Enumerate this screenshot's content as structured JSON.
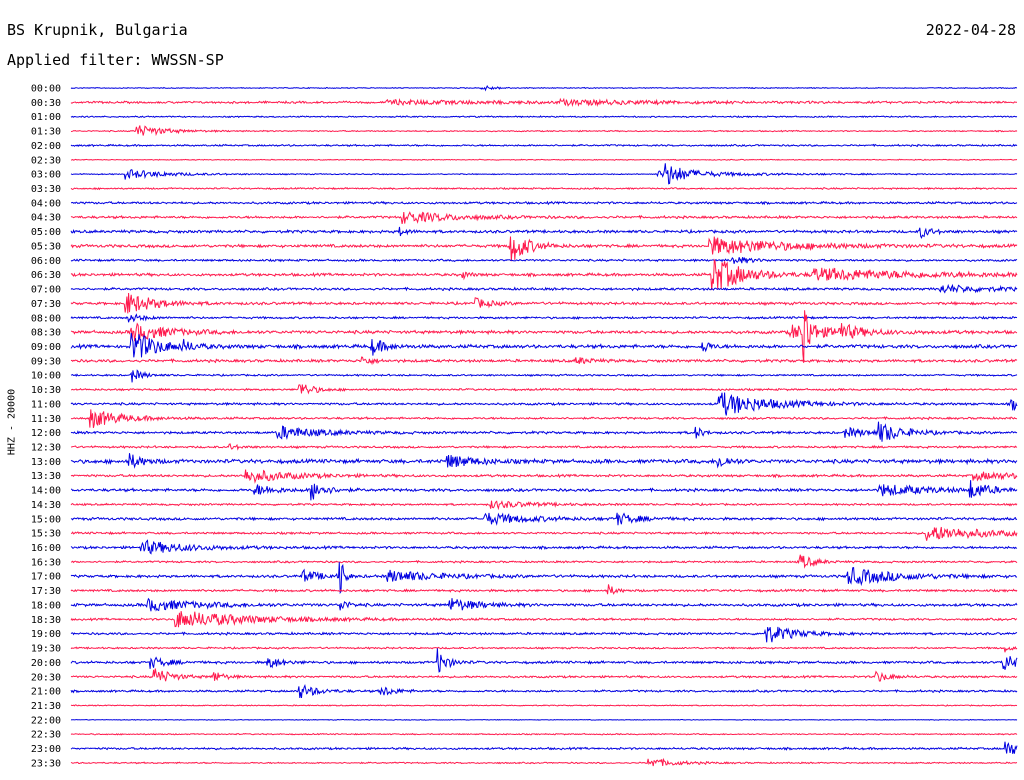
{
  "header": {
    "station": "BS Krupnik, Bulgaria",
    "date": "2022-04-28",
    "filter": "Applied filter: WWSSN-SP",
    "side_label": "HHZ - 20000"
  },
  "colors": {
    "even_rows": "#0000e0",
    "odd_rows": "#ff1a4d"
  },
  "chart_data": {
    "type": "helicorder",
    "title": "BS Krupnik, Bulgaria",
    "date": "2022-04-28",
    "channel_label": "HHZ - 20000",
    "filter": "WWSSN-SP",
    "row_minutes": 30,
    "rows": [
      "00:00",
      "00:30",
      "01:00",
      "01:30",
      "02:00",
      "02:30",
      "03:00",
      "03:30",
      "04:00",
      "04:30",
      "05:00",
      "05:30",
      "06:00",
      "06:30",
      "07:00",
      "07:30",
      "08:00",
      "08:30",
      "09:00",
      "09:30",
      "10:00",
      "10:30",
      "11:00",
      "11:30",
      "12:00",
      "12:30",
      "13:00",
      "13:30",
      "14:00",
      "14:30",
      "15:00",
      "15:30",
      "16:00",
      "16:30",
      "17:00",
      "17:30",
      "18:00",
      "18:30",
      "19:00",
      "19:30",
      "20:00",
      "20:30",
      "21:00",
      "21:30",
      "22:00",
      "22:30",
      "23:00",
      "23:30"
    ],
    "noise": [
      0.5,
      1.2,
      0.8,
      0.7,
      1.0,
      0.5,
      0.6,
      0.9,
      1.3,
      1.4,
      1.6,
      1.7,
      1.2,
      1.6,
      1.4,
      1.5,
      1.2,
      1.8,
      2.0,
      1.6,
      1.0,
      1.1,
      1.3,
      1.2,
      1.4,
      1.2,
      2.2,
      1.4,
      1.6,
      1.1,
      1.5,
      1.2,
      1.4,
      1.1,
      1.5,
      1.3,
      1.6,
      1.2,
      1.3,
      1.0,
      1.4,
      1.2,
      1.2,
      0.6,
      0.4,
      0.7,
      1.2,
      0.8
    ],
    "events": [
      {
        "row": 0,
        "min": 13.0,
        "amp": 3,
        "dur": 0.4
      },
      {
        "row": 1,
        "min": 10.0,
        "amp": 2,
        "dur": 4.0
      },
      {
        "row": 1,
        "min": 15.5,
        "amp": 2,
        "dur": 3.0
      },
      {
        "row": 3,
        "min": 2.0,
        "amp": 7,
        "dur": 0.8
      },
      {
        "row": 6,
        "min": 1.7,
        "amp": 5,
        "dur": 1.2
      },
      {
        "row": 6,
        "min": 18.6,
        "amp": 3,
        "dur": 2.5
      },
      {
        "row": 6,
        "min": 18.8,
        "amp": 11,
        "dur": 0.5
      },
      {
        "row": 9,
        "min": 10.5,
        "amp": 6,
        "dur": 1.5
      },
      {
        "row": 10,
        "min": 10.4,
        "amp": 5,
        "dur": 0.2
      },
      {
        "row": 10,
        "min": 26.9,
        "amp": 7,
        "dur": 0.3
      },
      {
        "row": 11,
        "min": 13.9,
        "amp": 19,
        "dur": 0.5
      },
      {
        "row": 11,
        "min": 20.2,
        "amp": 9,
        "dur": 2.2
      },
      {
        "row": 12,
        "min": 20.9,
        "amp": 5,
        "dur": 0.5
      },
      {
        "row": 13,
        "min": 12.4,
        "amp": 4,
        "dur": 0.2
      },
      {
        "row": 13,
        "min": 20.3,
        "amp": 20,
        "dur": 0.9
      },
      {
        "row": 13,
        "min": 23.5,
        "amp": 6,
        "dur": 3.5
      },
      {
        "row": 14,
        "min": 27.5,
        "amp": 4,
        "dur": 1.5
      },
      {
        "row": 15,
        "min": 1.7,
        "amp": 12,
        "dur": 0.8
      },
      {
        "row": 15,
        "min": 12.8,
        "amp": 5,
        "dur": 0.5
      },
      {
        "row": 16,
        "min": 1.8,
        "amp": 5,
        "dur": 0.4
      },
      {
        "row": 17,
        "min": 1.9,
        "amp": 10,
        "dur": 1.0
      },
      {
        "row": 17,
        "min": 22.8,
        "amp": 7,
        "dur": 1.5
      },
      {
        "row": 17,
        "min": 23.2,
        "amp": 45,
        "dur": 0.15
      },
      {
        "row": 17,
        "min": 24.3,
        "amp": 8,
        "dur": 0.5
      },
      {
        "row": 18,
        "min": 1.9,
        "amp": 16,
        "dur": 0.8
      },
      {
        "row": 18,
        "min": 3.5,
        "amp": 5,
        "dur": 0.3
      },
      {
        "row": 18,
        "min": 9.5,
        "amp": 9,
        "dur": 0.4
      },
      {
        "row": 18,
        "min": 20.0,
        "amp": 9,
        "dur": 0.2
      },
      {
        "row": 19,
        "min": 9.2,
        "amp": 5,
        "dur": 0.3
      },
      {
        "row": 19,
        "min": 16.0,
        "amp": 4,
        "dur": 0.4
      },
      {
        "row": 20,
        "min": 1.9,
        "amp": 8,
        "dur": 0.3
      },
      {
        "row": 21,
        "min": 7.2,
        "amp": 9,
        "dur": 0.4
      },
      {
        "row": 22,
        "min": 20.5,
        "amp": 13,
        "dur": 1.4
      },
      {
        "row": 22,
        "min": 29.8,
        "amp": 6,
        "dur": 0.5
      },
      {
        "row": 23,
        "min": 0.6,
        "amp": 10,
        "dur": 0.9
      },
      {
        "row": 24,
        "min": 6.5,
        "amp": 7,
        "dur": 1.2
      },
      {
        "row": 24,
        "min": 19.8,
        "amp": 7,
        "dur": 0.2
      },
      {
        "row": 24,
        "min": 24.5,
        "amp": 5,
        "dur": 0.8
      },
      {
        "row": 24,
        "min": 25.6,
        "amp": 10,
        "dur": 0.7
      },
      {
        "row": 25,
        "min": 5.0,
        "amp": 3,
        "dur": 0.3
      },
      {
        "row": 26,
        "min": 1.8,
        "amp": 8,
        "dur": 0.4
      },
      {
        "row": 26,
        "min": 11.9,
        "amp": 7,
        "dur": 0.8
      },
      {
        "row": 26,
        "min": 20.5,
        "amp": 8,
        "dur": 0.3
      },
      {
        "row": 27,
        "min": 5.5,
        "amp": 7,
        "dur": 1.3
      },
      {
        "row": 27,
        "min": 28.6,
        "amp": 4,
        "dur": 1.5
      },
      {
        "row": 28,
        "min": 5.8,
        "amp": 6,
        "dur": 0.6
      },
      {
        "row": 28,
        "min": 7.6,
        "amp": 11,
        "dur": 0.4
      },
      {
        "row": 28,
        "min": 25.6,
        "amp": 6,
        "dur": 1.5
      },
      {
        "row": 28,
        "min": 28.5,
        "amp": 9,
        "dur": 0.5
      },
      {
        "row": 29,
        "min": 13.3,
        "amp": 4,
        "dur": 1.2
      },
      {
        "row": 30,
        "min": 13.1,
        "amp": 6,
        "dur": 1.3
      },
      {
        "row": 30,
        "min": 17.3,
        "amp": 6,
        "dur": 0.6
      },
      {
        "row": 31,
        "min": 27.1,
        "amp": 8,
        "dur": 1.8
      },
      {
        "row": 32,
        "min": 2.2,
        "amp": 7,
        "dur": 1.4
      },
      {
        "row": 33,
        "min": 23.1,
        "amp": 8,
        "dur": 0.4
      },
      {
        "row": 34,
        "min": 7.3,
        "amp": 6,
        "dur": 0.6
      },
      {
        "row": 34,
        "min": 8.5,
        "amp": 36,
        "dur": 0.1
      },
      {
        "row": 34,
        "min": 10.0,
        "amp": 6,
        "dur": 1.5
      },
      {
        "row": 34,
        "min": 24.6,
        "amp": 9,
        "dur": 1.5
      },
      {
        "row": 35,
        "min": 17.0,
        "amp": 7,
        "dur": 0.2
      },
      {
        "row": 36,
        "min": 2.4,
        "amp": 6,
        "dur": 1.5
      },
      {
        "row": 36,
        "min": 8.5,
        "amp": 8,
        "dur": 0.2
      },
      {
        "row": 36,
        "min": 12.0,
        "amp": 7,
        "dur": 0.8
      },
      {
        "row": 37,
        "min": 3.3,
        "amp": 9,
        "dur": 2.2
      },
      {
        "row": 38,
        "min": 22.0,
        "amp": 10,
        "dur": 0.8
      },
      {
        "row": 39,
        "min": 29.6,
        "amp": 4,
        "dur": 0.2
      },
      {
        "row": 40,
        "min": 2.5,
        "amp": 6,
        "dur": 0.5
      },
      {
        "row": 40,
        "min": 6.2,
        "amp": 7,
        "dur": 0.4
      },
      {
        "row": 40,
        "min": 11.6,
        "amp": 14,
        "dur": 0.3
      },
      {
        "row": 40,
        "min": 29.5,
        "amp": 10,
        "dur": 0.5
      },
      {
        "row": 41,
        "min": 2.6,
        "amp": 10,
        "dur": 0.5
      },
      {
        "row": 41,
        "min": 4.5,
        "amp": 6,
        "dur": 0.3
      },
      {
        "row": 41,
        "min": 25.5,
        "amp": 6,
        "dur": 0.4
      },
      {
        "row": 42,
        "min": 7.2,
        "amp": 8,
        "dur": 0.5
      },
      {
        "row": 42,
        "min": 9.8,
        "amp": 6,
        "dur": 0.4
      },
      {
        "row": 46,
        "min": 29.6,
        "amp": 9,
        "dur": 0.5
      },
      {
        "row": 47,
        "min": 18.3,
        "amp": 5,
        "dur": 0.8
      }
    ]
  }
}
